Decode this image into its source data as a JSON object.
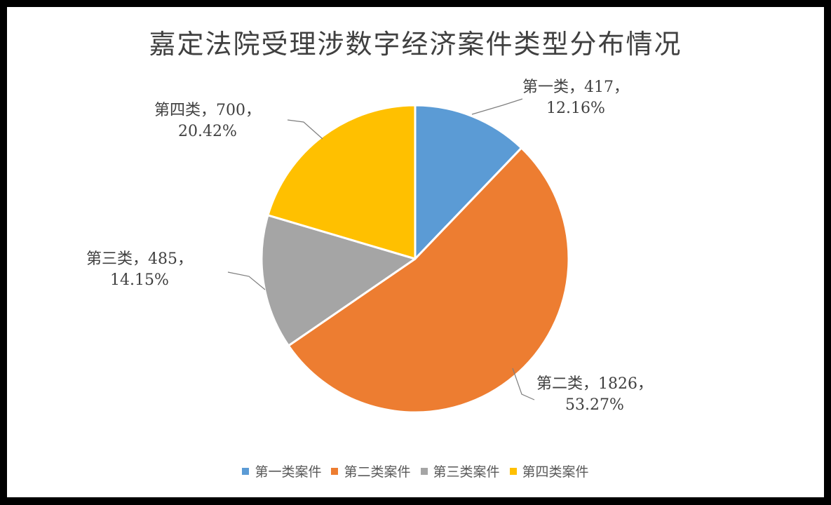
{
  "chart_data": {
    "type": "pie",
    "title": "嘉定法院受理涉数字经济案件类型分布情况",
    "start_angle_deg": 0,
    "direction": "clockwise",
    "legend_position": "bottom",
    "slices": [
      {
        "name": "第一类",
        "legend": "第一类案件",
        "value": 417,
        "percent": "12.16%",
        "color": "#5B9BD5"
      },
      {
        "name": "第二类",
        "legend": "第二类案件",
        "value": 1826,
        "percent": "53.27%",
        "color": "#ED7D31"
      },
      {
        "name": "第三类",
        "legend": "第三类案件",
        "value": 485,
        "percent": "14.15%",
        "color": "#A5A5A5"
      },
      {
        "name": "第四类",
        "legend": "第四类案件",
        "value": 700,
        "percent": "20.42%",
        "color": "#FFC000"
      }
    ]
  }
}
